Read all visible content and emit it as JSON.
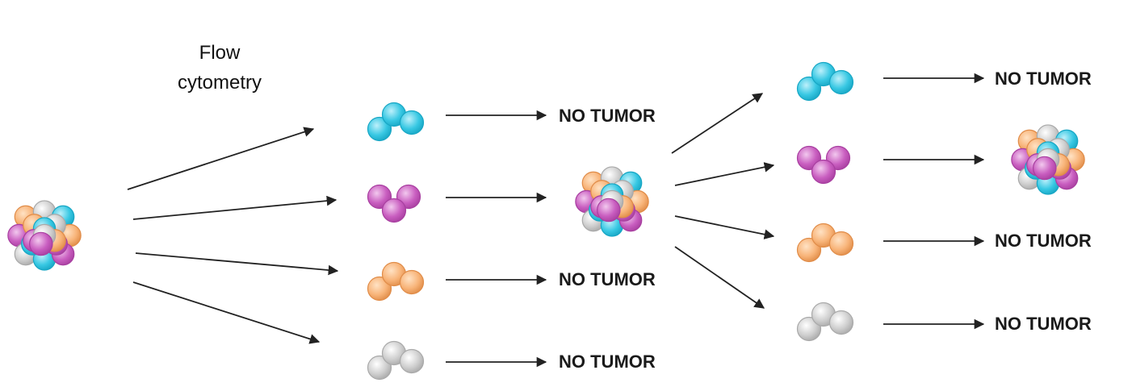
{
  "figure": {
    "method_label_line1": "Flow",
    "method_label_line2": "cytometry",
    "no_tumor_label": "NO TUMOR"
  },
  "cell_colors": {
    "cyan": {
      "light": "#bdf0fb",
      "fill": "#38c8e3",
      "stroke": "#17a6c4"
    },
    "purple": {
      "light": "#f2c8ee",
      "fill": "#c95ec0",
      "stroke": "#a83fa0"
    },
    "orange": {
      "light": "#ffe2c4",
      "fill": "#f8b479",
      "stroke": "#e08c48"
    },
    "gray": {
      "light": "#ffffff",
      "fill": "#cfcfcf",
      "stroke": "#a9a9a9"
    }
  },
  "sorted_populations_round1": [
    {
      "color": "cyan",
      "outcome": "NO TUMOR"
    },
    {
      "color": "purple",
      "outcome": "tumor"
    },
    {
      "color": "orange",
      "outcome": "NO TUMOR"
    },
    {
      "color": "gray",
      "outcome": "NO TUMOR"
    }
  ],
  "sorted_populations_round2": [
    {
      "color": "cyan",
      "outcome": "NO TUMOR"
    },
    {
      "color": "purple",
      "outcome": "tumor"
    },
    {
      "color": "orange",
      "outcome": "NO TUMOR"
    },
    {
      "color": "gray",
      "outcome": "NO TUMOR"
    }
  ]
}
